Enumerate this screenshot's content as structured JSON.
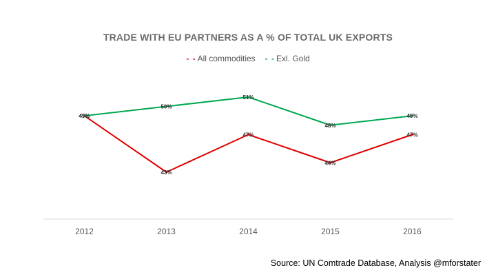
{
  "chart_data": {
    "type": "line",
    "title": "TRADE WITH EU PARTNERS AS A % OF TOTAL UK EXPORTS",
    "xlabel": "",
    "ylabel": "",
    "categories": [
      "2012",
      "2013",
      "2014",
      "2015",
      "2016"
    ],
    "ylim": [
      38,
      54
    ],
    "grid": false,
    "legend": "top",
    "series": [
      {
        "name": "All commodities",
        "color": "#e00000",
        "values": [
          49,
          43,
          47,
          44,
          47
        ],
        "labels": [
          "49%",
          "43%",
          "47%",
          "44%",
          "47%"
        ]
      },
      {
        "name": "Exl. Gold",
        "color": "#00a84f",
        "values": [
          49,
          50,
          51,
          48,
          49
        ],
        "labels": [
          "49%",
          "50%",
          "51%",
          "48%",
          "49%"
        ]
      }
    ]
  },
  "legend_marker": "- -",
  "source": "Source: UN Comtrade Database, Analysis @mforstater"
}
